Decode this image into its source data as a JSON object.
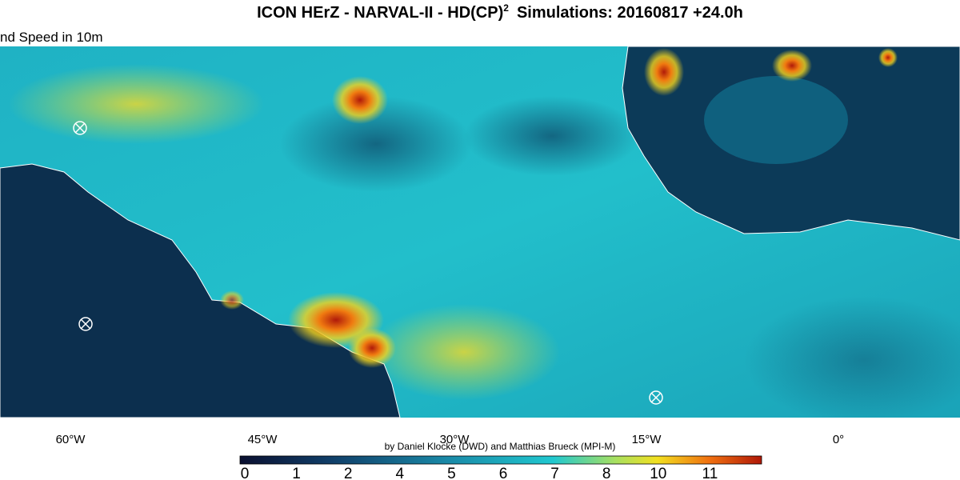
{
  "header": {
    "title": "ICON HErZ - NARVAL-II - HD(CP)",
    "title_superscript": "2",
    "title_suffix": "Simulations: 20160817 +24.0h",
    "subtitle": "nd Speed in 10m"
  },
  "map": {
    "longitude_labels": [
      "60°W",
      "45°W",
      "30°W",
      "15°W",
      "0°"
    ]
  },
  "credit": "by Daniel Klocke (DWD) and Matthias Brueck (MPI-M)",
  "colorbar": {
    "tick_labels": [
      "0",
      "1",
      "2",
      "4",
      "5",
      "6",
      "7",
      "8",
      "10",
      "11"
    ]
  }
}
